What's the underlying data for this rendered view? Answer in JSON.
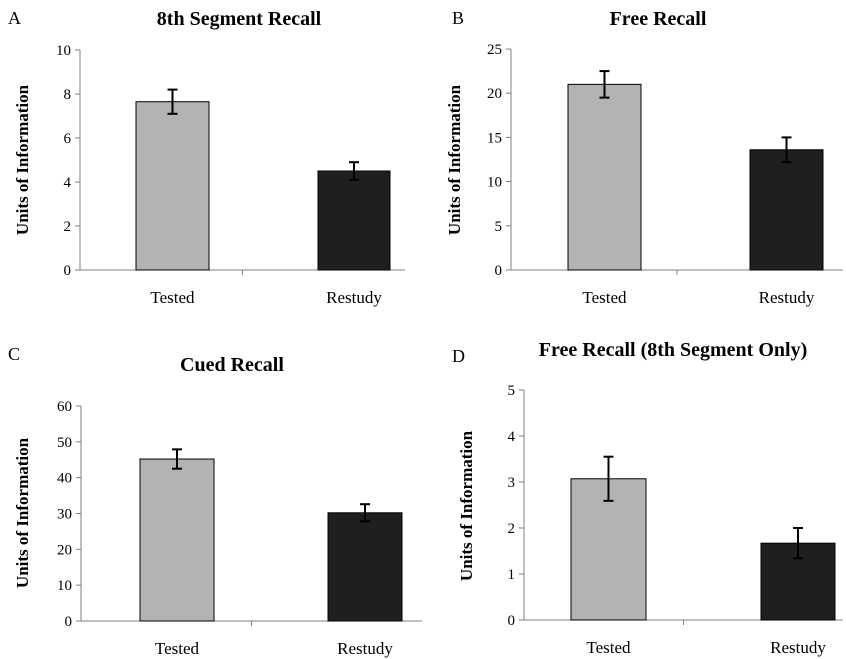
{
  "chart_data": [
    {
      "type": "bar",
      "panel": "A",
      "title": "8th Segment Recall",
      "ylabel": "Units of Information",
      "xlabel": "",
      "categories": [
        "Tested",
        "Restudy"
      ],
      "values": [
        7.65,
        4.5
      ],
      "errors": [
        0.55,
        0.4
      ],
      "colors": [
        "#b3b3b3",
        "#1f1f1f"
      ],
      "ylim": [
        0,
        10
      ],
      "yticks": [
        0,
        2,
        4,
        6,
        8,
        10
      ],
      "grid": false
    },
    {
      "type": "bar",
      "panel": "B",
      "title": "Free Recall",
      "ylabel": "Units of Information",
      "xlabel": "",
      "categories": [
        "Tested",
        "Restudy"
      ],
      "values": [
        21,
        13.6
      ],
      "errors": [
        1.5,
        1.4
      ],
      "colors": [
        "#b3b3b3",
        "#1f1f1f"
      ],
      "ylim": [
        0,
        25
      ],
      "yticks": [
        0,
        5,
        10,
        15,
        20,
        25
      ],
      "grid": false
    },
    {
      "type": "bar",
      "panel": "C",
      "title": "Cued Recall",
      "ylabel": "Units of Information",
      "xlabel": "",
      "categories": [
        "Tested",
        "Restudy"
      ],
      "values": [
        45.2,
        30.2
      ],
      "errors": [
        2.7,
        2.4
      ],
      "colors": [
        "#b3b3b3",
        "#1f1f1f"
      ],
      "ylim": [
        0,
        60
      ],
      "yticks": [
        0,
        10,
        20,
        30,
        40,
        50,
        60
      ],
      "grid": false
    },
    {
      "type": "bar",
      "panel": "D",
      "title": "Free Recall (8th Segment Only)",
      "ylabel": "Units of Information",
      "xlabel": "",
      "categories": [
        "Tested",
        "Restudy"
      ],
      "values": [
        3.07,
        1.67
      ],
      "errors": [
        0.48,
        0.33
      ],
      "colors": [
        "#b3b3b3",
        "#1f1f1f"
      ],
      "ylim": [
        0,
        5
      ],
      "yticks": [
        0,
        1,
        2,
        3,
        4,
        5
      ],
      "grid": false
    }
  ]
}
